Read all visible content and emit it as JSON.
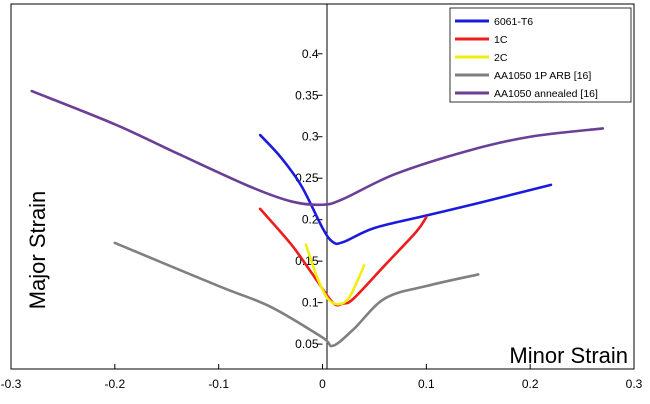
{
  "chart_data": {
    "type": "line",
    "xlabel": "Minor Strain",
    "ylabel": "Major Strain",
    "xlim": [
      -0.3,
      0.3
    ],
    "ylim": [
      0.02,
      0.46
    ],
    "x_ticks": [
      -0.3,
      -0.2,
      -0.1,
      0,
      0.1,
      0.2,
      0.3
    ],
    "x_tick_labels": [
      "-0.3",
      "-0.2",
      "-0.1",
      "0",
      "0.1",
      "0.2",
      "0.3"
    ],
    "y_ticks": [
      0.05,
      0.1,
      0.15,
      0.2,
      0.25,
      0.3,
      0.35,
      0.4
    ],
    "y_tick_labels": [
      "0.05",
      "0.1",
      "0.15",
      "0.2",
      "0.25",
      "0.3",
      "0.35",
      "0.4"
    ],
    "grid": false,
    "legend_position": "top-right",
    "series": [
      {
        "name": "6061-T6",
        "color": "#1b1bdc",
        "x": [
          -0.06,
          -0.04,
          -0.02,
          0.0,
          0.01,
          0.02,
          0.05,
          0.1,
          0.15,
          0.22
        ],
        "y": [
          0.302,
          0.275,
          0.24,
          0.19,
          0.173,
          0.173,
          0.19,
          0.205,
          0.22,
          0.242
        ]
      },
      {
        "name": "1C",
        "color": "#ee1c1c",
        "x": [
          -0.06,
          -0.03,
          -0.01,
          0.01,
          0.02,
          0.03,
          0.06,
          0.09,
          0.1
        ],
        "y": [
          0.213,
          0.17,
          0.135,
          0.1,
          0.099,
          0.105,
          0.145,
          0.185,
          0.203
        ]
      },
      {
        "name": "2C",
        "color": "#f2ee0c",
        "x": [
          -0.016,
          -0.005,
          0.005,
          0.015,
          0.025,
          0.035,
          0.04
        ],
        "y": [
          0.17,
          0.13,
          0.105,
          0.098,
          0.105,
          0.13,
          0.145
        ]
      },
      {
        "name": "AA1050 1P ARB [16]",
        "color": "#808080",
        "x": [
          -0.2,
          -0.1,
          -0.05,
          0.0,
          0.01,
          0.03,
          0.06,
          0.1,
          0.15
        ],
        "y": [
          0.172,
          0.12,
          0.095,
          0.058,
          0.048,
          0.068,
          0.105,
          0.12,
          0.134
        ]
      },
      {
        "name": "AA1050 annealed [16]",
        "color": "#6a3f96",
        "x": [
          -0.28,
          -0.2,
          -0.14,
          -0.07,
          -0.03,
          0.0,
          0.02,
          0.07,
          0.14,
          0.2,
          0.27
        ],
        "y": [
          0.355,
          0.315,
          0.28,
          0.24,
          0.222,
          0.218,
          0.225,
          0.255,
          0.283,
          0.3,
          0.31
        ]
      }
    ]
  }
}
